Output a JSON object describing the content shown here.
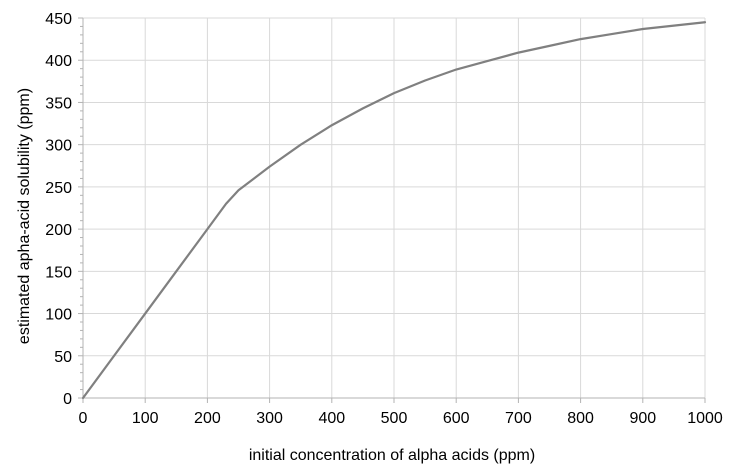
{
  "chart_data": {
    "type": "line",
    "title": "",
    "xlabel": "initial concentration of alpha acids (ppm)",
    "ylabel": "estimated apha-acid solubility (ppm)",
    "xlim": [
      0,
      1000
    ],
    "ylim": [
      0,
      450
    ],
    "x_ticks": [
      0,
      100,
      200,
      300,
      400,
      500,
      600,
      700,
      800,
      900,
      1000
    ],
    "y_ticks": [
      0,
      50,
      100,
      150,
      200,
      250,
      300,
      350,
      400,
      450
    ],
    "grid": "vertical and horizontal major gridlines",
    "legend": "none",
    "line_color": "#808080",
    "grid_color": "#d9d9d9",
    "series": [
      {
        "x": [
          0,
          50,
          100,
          150,
          200,
          230,
          250,
          300,
          350,
          400,
          450,
          500,
          550,
          600,
          650,
          700,
          750,
          800,
          850,
          900,
          950,
          1000
        ],
        "values": [
          0,
          50,
          100,
          150,
          200,
          230,
          246,
          274,
          300,
          323,
          343,
          361,
          376,
          389,
          399,
          409,
          417,
          425,
          431,
          437,
          441,
          445
        ]
      }
    ]
  }
}
